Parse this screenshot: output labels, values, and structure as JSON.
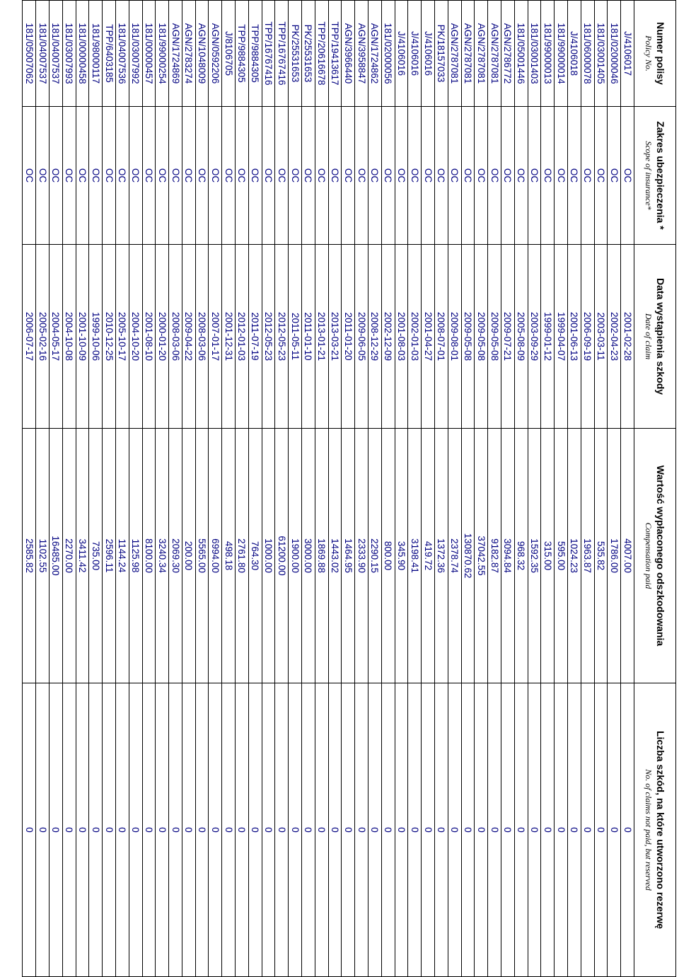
{
  "table": {
    "columns": [
      {
        "title": "Numer polisy",
        "subtitle": "Policy No."
      },
      {
        "title": "Zakres ubezpieczenia *",
        "subtitle": "Scope of insurance*"
      },
      {
        "title": "Data wystąpienia szkody",
        "subtitle": "Date of claim"
      },
      {
        "title": "Wartość wypłaconego odszkodowania",
        "subtitle": "Compensation paid"
      },
      {
        "title": "Liczba szkód, na które utworzono rezerwę",
        "subtitle": "No. of claims not paid, but reserved"
      }
    ],
    "rows": [
      [
        "J/4106017",
        "OC",
        "2001-02-28",
        "4007.00",
        "0"
      ],
      [
        "181/02000046",
        "OC",
        "2002-04-23",
        "1786.00",
        "0"
      ],
      [
        "181/03001405",
        "OC",
        "2003-03-11",
        "535.82",
        "0"
      ],
      [
        "181/06000078",
        "OC",
        "2006-09-19",
        "1963.87",
        "0"
      ],
      [
        "J/4106018",
        "OC",
        "2001-06-13",
        "1024.23",
        "0"
      ],
      [
        "181/99000014",
        "OC",
        "1999-04-07",
        "595.00",
        "0"
      ],
      [
        "181/99000013",
        "OC",
        "1999-01-12",
        "315.00",
        "0"
      ],
      [
        "181/03001403",
        "OC",
        "2003-09-29",
        "1592.35",
        "0"
      ],
      [
        "181/05001446",
        "OC",
        "2005-08-09",
        "968.32",
        "0"
      ],
      [
        "AGN/2786772",
        "OC",
        "2009-07-21",
        "3094.84",
        "0"
      ],
      [
        "AGN/2787081",
        "OC",
        "2009-05-08",
        "9182.87",
        "0"
      ],
      [
        "AGN/2787081",
        "OC",
        "2009-05-08",
        "37042.55",
        "0"
      ],
      [
        "AGN/2787081",
        "OC",
        "2009-05-08",
        "130870.62",
        "0"
      ],
      [
        "AGN/2787081",
        "OC",
        "2009-08-01",
        "2378.74",
        "0"
      ],
      [
        "PK/18157033",
        "OC",
        "2008-07-01",
        "1372.36",
        "0"
      ],
      [
        "J/4106016",
        "OC",
        "2001-04-27",
        "419.72",
        "0"
      ],
      [
        "J/4106016",
        "OC",
        "2002-01-03",
        "3198.41",
        "0"
      ],
      [
        "J/4106016",
        "OC",
        "2001-08-03",
        "345.90",
        "0"
      ],
      [
        "181/02000056",
        "OC",
        "2002-12-09",
        "800.00",
        "0"
      ],
      [
        "AGN/1724862",
        "OC",
        "2008-12-29",
        "2290.15",
        "0"
      ],
      [
        "AGN/3958847",
        "OC",
        "2009-06-05",
        "2333.90",
        "0"
      ],
      [
        "AGN/3966440",
        "OC",
        "2011-01-20",
        "1464.95",
        "0"
      ],
      [
        "TPP/19413617",
        "OC",
        "2013-03-21",
        "1443.02",
        "0"
      ],
      [
        "TPP/20616678",
        "OC",
        "2013-01-21",
        "1869.88",
        "0"
      ],
      [
        "PK/25531653",
        "OC",
        "2011-01-10",
        "3000.00",
        "0"
      ],
      [
        "PK/25531653",
        "OC",
        "2011-05-11",
        "1900.00",
        "0"
      ],
      [
        "TPP/16767416",
        "OC",
        "2012-05-23",
        "61200.00",
        "0"
      ],
      [
        "TPP/16767416",
        "OC",
        "2012-05-23",
        "1000.00",
        "0"
      ],
      [
        "TPP/9884305",
        "OC",
        "2011-07-19",
        "764.30",
        "0"
      ],
      [
        "TPP/9884305",
        "OC",
        "2012-01-03",
        "2761.80",
        "0"
      ],
      [
        "J/8106705",
        "OC",
        "2001-12-31",
        "498.18",
        "0"
      ],
      [
        "AGN/0592206",
        "OC",
        "2007-01-17",
        "6994.00",
        "0"
      ],
      [
        "AGN/1048009",
        "OC",
        "2008-03-06",
        "5565.00",
        "0"
      ],
      [
        "AGN/2783274",
        "OC",
        "2009-04-22",
        "200.00",
        "0"
      ],
      [
        "AGN/1724869",
        "OC",
        "2008-03-06",
        "2069.30",
        "0"
      ],
      [
        "181/99000254",
        "OC",
        "2000-01-20",
        "3240.34",
        "0"
      ],
      [
        "181/00000457",
        "OC",
        "2001-08-10",
        "8100.00",
        "0"
      ],
      [
        "181/03007992",
        "OC",
        "2004-10-20",
        "1125.98",
        "0"
      ],
      [
        "181/04007536",
        "OC",
        "2005-10-17",
        "1144.24",
        "0"
      ],
      [
        "TPP/6403185",
        "OC",
        "2010-12-25",
        "2596.11",
        "0"
      ],
      [
        "181/98000117",
        "OC",
        "1999-10-06",
        "735.00",
        "0"
      ],
      [
        "181/00000458",
        "OC",
        "2001-10-09",
        "3411.42",
        "0"
      ],
      [
        "181/03007993",
        "OC",
        "2004-10-08",
        "2270.00",
        "0"
      ],
      [
        "181/04007537",
        "OC",
        "2004-05-17",
        "16485.00",
        "0"
      ],
      [
        "181/04007537",
        "OC",
        "2005-02-16",
        "1102.55",
        "0"
      ],
      [
        "181/05007062",
        "OC",
        "2006-07-17",
        "2585.82",
        "0"
      ]
    ]
  }
}
